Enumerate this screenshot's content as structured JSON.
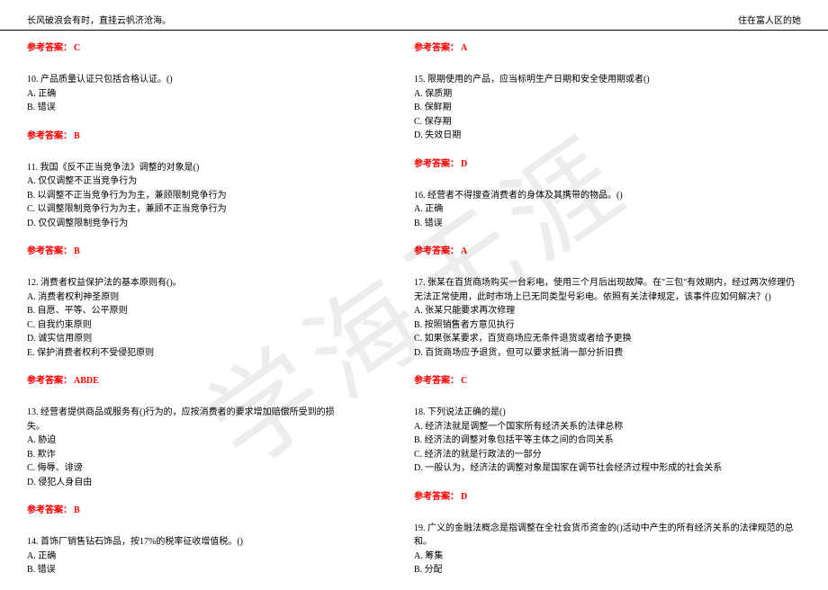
{
  "header": {
    "left": "长风破浪会有时，直挂云帆济沧海。",
    "right": "住在富人区的她"
  },
  "watermark": "学海无涯",
  "labels": {
    "answer_prefix": "参考答案："
  },
  "colors": {
    "answer_color": "#ff0000",
    "text_color": "#000000",
    "background": "#ffffff",
    "watermark_rgba": "rgba(0,0,0,0.07)"
  },
  "left_column": [
    {
      "answer_only": "C"
    },
    {
      "q": "10. 产品质量认证只包括合格认证。()",
      "opts": [
        "A. 正确",
        "B. 错误"
      ],
      "answer": "B"
    },
    {
      "q": "11. 我国《反不正当竞争法》调整的对象是()",
      "opts": [
        "A. 仅仅调整不正当竞争行为",
        "B. 以调整不正当竞争行为为主，兼顾限制竞争行为",
        "C. 以调整限制竞争行为为主，兼顾不正当竞争行为",
        "D. 仅仅调整限制竞争行为"
      ],
      "answer": "B"
    },
    {
      "q": "12. 消费者权益保护法的基本原则有()。",
      "opts": [
        "A. 消费者权利神圣原则",
        "B. 自愿、平等、公平原则",
        "C. 自我约束原则",
        "D. 诚实信用原则",
        "E. 保护消费者权利不受侵犯原则"
      ],
      "answer": "ABDE"
    },
    {
      "q": "13. 经营者提供商品或服务有()行为的，应按消费者的要求增加赔偿所受到的损失。",
      "opts": [
        "A. 胁迫",
        "B. 欺诈",
        "C. 侮辱、诽谤",
        "D. 侵犯人身自由"
      ],
      "answer": "B"
    },
    {
      "q": "14. 首饰厂销售钻石饰品，按17%的税率征收增值税。()",
      "opts": [
        "A. 正确",
        "B. 错误"
      ],
      "answer": null
    }
  ],
  "right_column": [
    {
      "answer_only": "A"
    },
    {
      "q": "15. 限期使用的产品，应当标明生产日期和安全使用期或者()",
      "opts": [
        "A. 保质期",
        "B. 保鲜期",
        "C. 保存期",
        "D. 失效日期"
      ],
      "answer": "D"
    },
    {
      "q": "16. 经营者不得搜查消费者的身体及其携带的物品。()",
      "opts": [
        "A. 正确",
        "B. 错误"
      ],
      "answer": "A"
    },
    {
      "q": "17. 张某在百货商场购买一台彩电，使用三个月后出现故障。在\"三包\"有效期内，经过两次修理仍无法正常使用，此时市场上已无同类型号彩电。依照有关法律规定，该事件应如何解决？()",
      "opts": [
        "A. 张某只能要求再次修理",
        "B. 按照销售者方意见执行",
        "C. 如果张某要求，百货商场应无条件退货或者给予更换",
        "D. 百货商场应予退货，但可以要求抵消一部分折旧费"
      ],
      "answer": "C"
    },
    {
      "q": "18. 下列说法正确的是()",
      "opts": [
        "A. 经济法就是调整一个国家所有经济关系的法律总称",
        "B. 经济法的调整对象包括平等主体之间的合同关系",
        "C. 经济法的就是行政法的一部分",
        "D. 一般认为，经济法的调整对象是国家在调节社会经济过程中形成的社会关系"
      ],
      "answer": "D"
    },
    {
      "q": "19. 广义的金融法概念是指调整在全社会货币资金的()活动中产生的所有经济关系的法律规范的总和。",
      "opts": [
        "A. 筹集",
        "B. 分配"
      ],
      "answer": null
    }
  ]
}
